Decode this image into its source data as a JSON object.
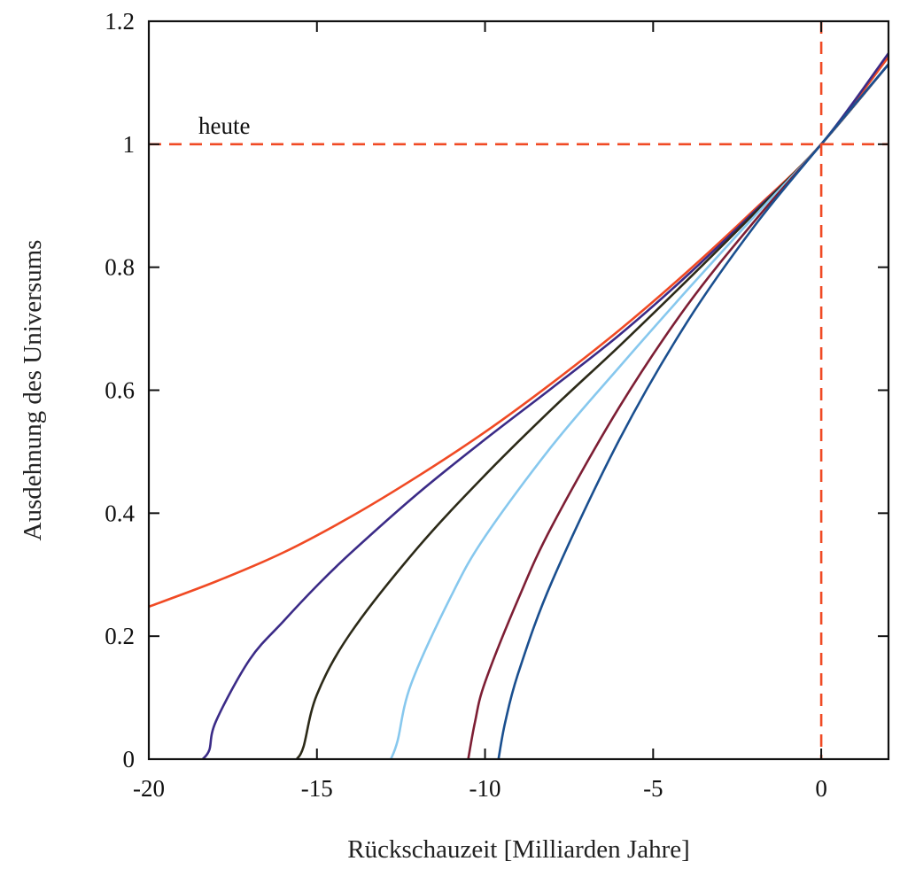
{
  "chart_data": {
    "type": "line",
    "xlabel": "Rückschauzeit [Milliarden Jahre]",
    "ylabel": "Ausdehnung des Universums",
    "xlim": [
      -20,
      2
    ],
    "ylim": [
      0,
      1.2
    ],
    "grid": false,
    "xticks": [
      -20,
      -15,
      -10,
      -5,
      0
    ],
    "xtick_labels": [
      "-20",
      "-15",
      "-10",
      "-5",
      "0"
    ],
    "yticks": [
      0,
      0.2,
      0.4,
      0.6,
      0.8,
      1.0,
      1.2
    ],
    "ytick_labels": [
      "0",
      "0.2",
      "0.4",
      "0.6",
      "0.8",
      "1",
      "1.2"
    ],
    "reference_lines": [
      {
        "orientation": "horizontal",
        "value": 1.0,
        "label": "heute",
        "color": "#f04a24"
      },
      {
        "orientation": "vertical",
        "value": 0,
        "color": "#f04a24"
      }
    ],
    "series": [
      {
        "color": "#f04a24",
        "points": [
          [
            -20,
            0.248
          ],
          [
            -18,
            0.289
          ],
          [
            -16,
            0.336
          ],
          [
            -14,
            0.394
          ],
          [
            -12,
            0.46
          ],
          [
            -10,
            0.532
          ],
          [
            -8,
            0.612
          ],
          [
            -6,
            0.698
          ],
          [
            -4,
            0.792
          ],
          [
            -2,
            0.893
          ],
          [
            0,
            1.0
          ],
          [
            2,
            1.142
          ]
        ]
      },
      {
        "color": "#3b2b87",
        "points": [
          [
            -18.4,
            0.0
          ],
          [
            -18.2,
            0.015
          ],
          [
            -18.0,
            0.062
          ],
          [
            -17.0,
            0.162
          ],
          [
            -16.0,
            0.224
          ],
          [
            -15.0,
            0.282
          ],
          [
            -14.0,
            0.335
          ],
          [
            -12.0,
            0.432
          ],
          [
            -10.0,
            0.52
          ],
          [
            -8.0,
            0.604
          ],
          [
            -6.0,
            0.69
          ],
          [
            -4.0,
            0.786
          ],
          [
            -2.0,
            0.89
          ],
          [
            0,
            1.0
          ],
          [
            2,
            1.148
          ]
        ]
      },
      {
        "color": "#2c2a18",
        "points": [
          [
            -15.6,
            0.0
          ],
          [
            -15.4,
            0.02
          ],
          [
            -15.0,
            0.105
          ],
          [
            -14.0,
            0.205
          ],
          [
            -12.0,
            0.344
          ],
          [
            -10.0,
            0.462
          ],
          [
            -8.0,
            0.57
          ],
          [
            -6.0,
            0.672
          ],
          [
            -4.0,
            0.778
          ],
          [
            -2.0,
            0.887
          ],
          [
            0,
            1.0
          ],
          [
            2,
            1.13
          ]
        ]
      },
      {
        "color": "#87c8ee",
        "points": [
          [
            -12.8,
            0.0
          ],
          [
            -12.6,
            0.03
          ],
          [
            -12.2,
            0.122
          ],
          [
            -11.0,
            0.266
          ],
          [
            -10.0,
            0.362
          ],
          [
            -8.0,
            0.51
          ],
          [
            -6.0,
            0.638
          ],
          [
            -4.0,
            0.762
          ],
          [
            -2.0,
            0.882
          ],
          [
            0,
            1.0
          ],
          [
            2,
            1.13
          ]
        ]
      },
      {
        "color": "#7d1e34",
        "points": [
          [
            -10.5,
            0.0
          ],
          [
            -10.3,
            0.06
          ],
          [
            -10.0,
            0.125
          ],
          [
            -9.0,
            0.262
          ],
          [
            -8.0,
            0.38
          ],
          [
            -6.0,
            0.573
          ],
          [
            -4.0,
            0.737
          ],
          [
            -2.0,
            0.874
          ],
          [
            0,
            1.0
          ],
          [
            2,
            1.13
          ]
        ]
      },
      {
        "color": "#1a4f8f",
        "points": [
          [
            -9.6,
            0.0
          ],
          [
            -9.4,
            0.06
          ],
          [
            -9.0,
            0.142
          ],
          [
            -8.0,
            0.29
          ],
          [
            -6.0,
            0.52
          ],
          [
            -4.0,
            0.71
          ],
          [
            -2.0,
            0.866
          ],
          [
            0,
            1.0
          ],
          [
            2,
            1.13
          ]
        ]
      }
    ]
  }
}
